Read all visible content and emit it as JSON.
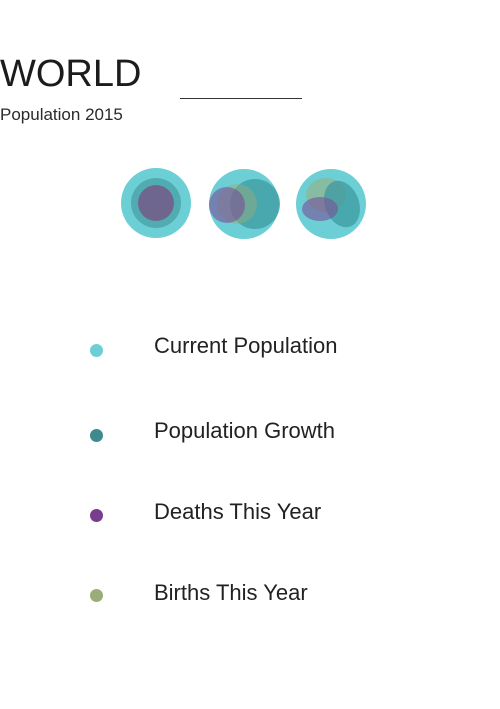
{
  "header": {
    "title": "WORLD",
    "subtitle": "Population 2015"
  },
  "colors": {
    "current_population": "#6ccfd6",
    "population_growth": "#3e8a8f",
    "deaths": "#7a3c8c",
    "births": "#9aad78"
  },
  "legend": [
    {
      "label": "Current Population",
      "color": "#6ccfd6"
    },
    {
      "label": "Population Growth",
      "color": "#3e8a8f"
    },
    {
      "label": "Deaths This Year",
      "color": "#7a3c8c"
    },
    {
      "label": "Births This Year",
      "color": "#9aad78"
    }
  ]
}
